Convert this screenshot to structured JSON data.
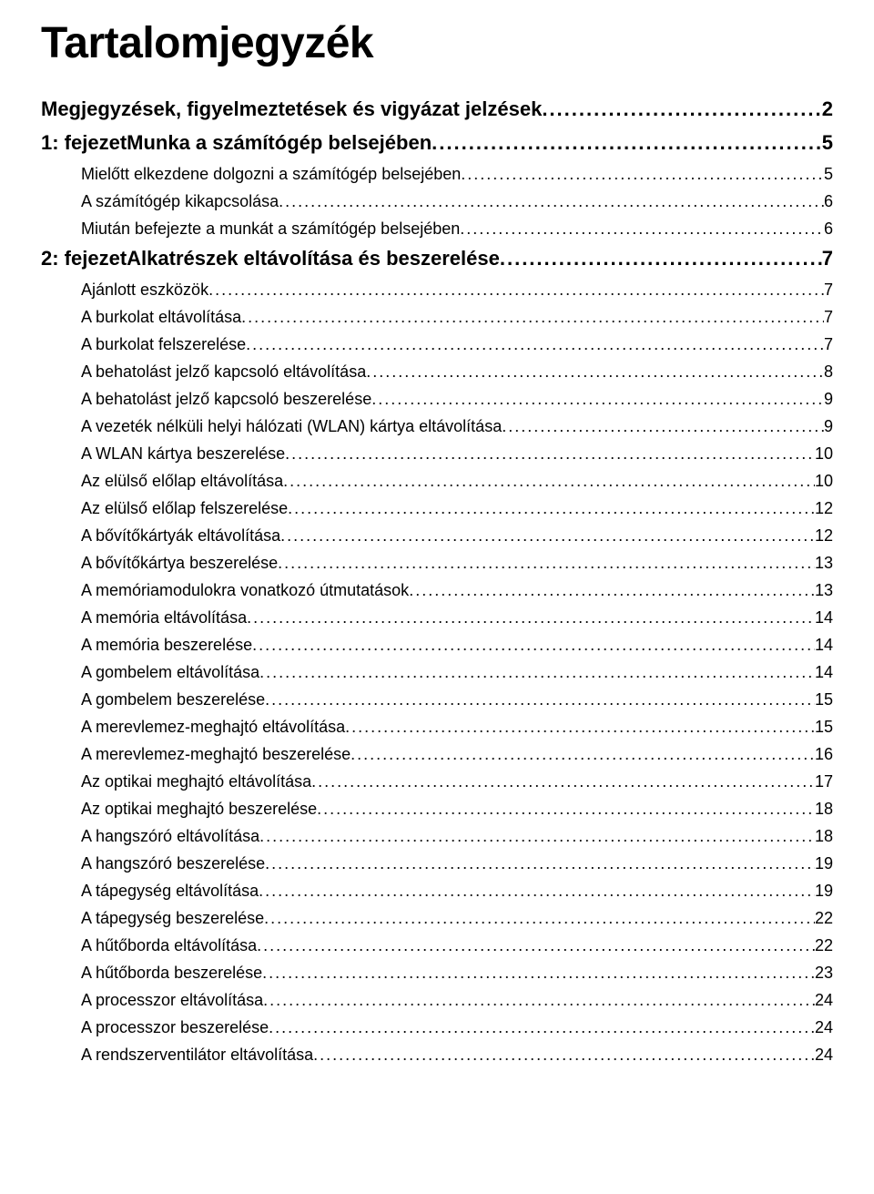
{
  "document": {
    "title": "Tartalomjegyzék",
    "font_family": "Arial Narrow",
    "title_fontsize": 48,
    "chapter_fontsize": 22,
    "entry_fontsize": 18,
    "text_color": "#000000",
    "background_color": "#ffffff",
    "entries": [
      {
        "type": "chapter",
        "label": "Megjegyzések, figyelmeztetések és vigyázat jelzések",
        "page": "2"
      },
      {
        "type": "chapter",
        "label": "1: fejezetMunka a számítógép belsejében",
        "page": "5"
      },
      {
        "type": "sub",
        "label": "Mielőtt elkezdene dolgozni a számítógép belsejében",
        "page": "5"
      },
      {
        "type": "sub",
        "label": "A számítógép kikapcsolása",
        "page": "6"
      },
      {
        "type": "sub",
        "label": "Miután befejezte a munkát a számítógép belsejében",
        "page": "6"
      },
      {
        "type": "chapter",
        "label": "2: fejezetAlkatrészek eltávolítása és beszerelése",
        "page": "7"
      },
      {
        "type": "sub",
        "label": "Ajánlott eszközök",
        "page": "7"
      },
      {
        "type": "sub",
        "label": "A burkolat eltávolítása",
        "page": "7"
      },
      {
        "type": "sub",
        "label": "A burkolat felszerelése",
        "page": "7"
      },
      {
        "type": "sub",
        "label": "A behatolást jelző kapcsoló eltávolítása",
        "page": "8"
      },
      {
        "type": "sub",
        "label": "A behatolást jelző kapcsoló beszerelése",
        "page": "9"
      },
      {
        "type": "sub",
        "label": "A vezeték nélküli helyi hálózati (WLAN) kártya eltávolítása",
        "page": "9"
      },
      {
        "type": "sub",
        "label": "A WLAN kártya beszerelése",
        "page": "10"
      },
      {
        "type": "sub",
        "label": "Az elülső előlap eltávolítása",
        "page": "10"
      },
      {
        "type": "sub",
        "label": "Az elülső előlap felszerelése",
        "page": "12"
      },
      {
        "type": "sub",
        "label": "A bővítőkártyák eltávolítása",
        "page": "12"
      },
      {
        "type": "sub",
        "label": "A bővítőkártya beszerelése",
        "page": "13"
      },
      {
        "type": "sub",
        "label": "A memóriamodulokra vonatkozó útmutatások",
        "page": "13"
      },
      {
        "type": "sub",
        "label": "A memória eltávolítása",
        "page": "14"
      },
      {
        "type": "sub",
        "label": "A memória beszerelése",
        "page": "14"
      },
      {
        "type": "sub",
        "label": "A gombelem eltávolítása",
        "page": "14"
      },
      {
        "type": "sub",
        "label": "A gombelem beszerelése",
        "page": "15"
      },
      {
        "type": "sub",
        "label": "A merevlemez-meghajtó eltávolítása",
        "page": "15"
      },
      {
        "type": "sub",
        "label": "A merevlemez-meghajtó beszerelése",
        "page": "16"
      },
      {
        "type": "sub",
        "label": "Az optikai meghajtó eltávolítása",
        "page": "17"
      },
      {
        "type": "sub",
        "label": "Az optikai meghajtó beszerelése",
        "page": "18"
      },
      {
        "type": "sub",
        "label": "A hangszóró eltávolítása",
        "page": "18"
      },
      {
        "type": "sub",
        "label": "A hangszóró beszerelése",
        "page": "19"
      },
      {
        "type": "sub",
        "label": "A tápegység eltávolítása",
        "page": "19"
      },
      {
        "type": "sub",
        "label": "A tápegység beszerelése",
        "page": "22"
      },
      {
        "type": "sub",
        "label": "A hűtőborda eltávolítása",
        "page": "22"
      },
      {
        "type": "sub",
        "label": "A hűtőborda beszerelése",
        "page": "23"
      },
      {
        "type": "sub",
        "label": "A processzor eltávolítása",
        "page": "24"
      },
      {
        "type": "sub",
        "label": "A processzor beszerelése",
        "page": "24"
      },
      {
        "type": "sub",
        "label": "A rendszerventilátor eltávolítása",
        "page": "24"
      }
    ]
  }
}
